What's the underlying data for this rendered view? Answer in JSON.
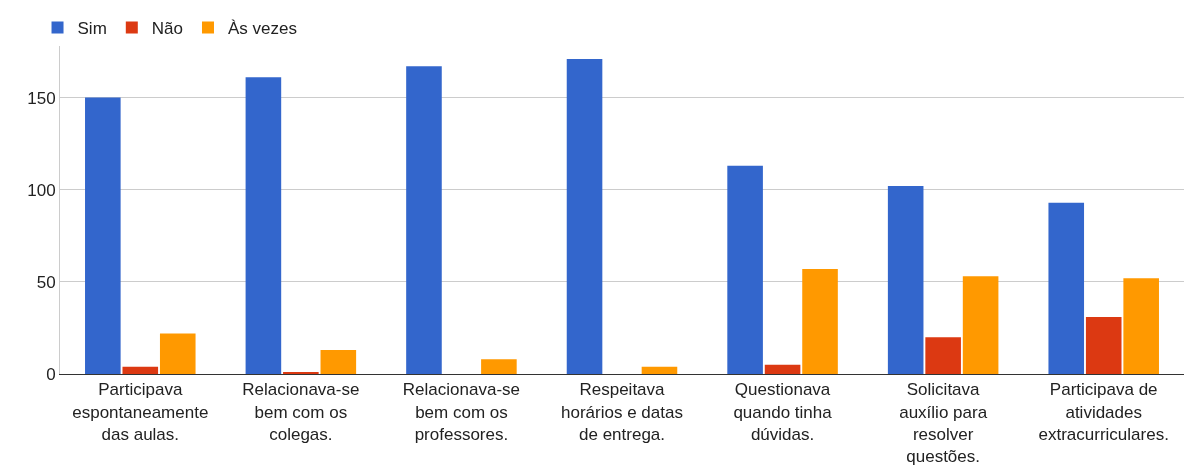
{
  "chart_data": {
    "type": "bar",
    "categories": [
      "Participava espontaneamente das aulas.",
      "Relacionava-se bem com os colegas.",
      "Relacionava-se bem com os professores.",
      "Respeitava horários e datas de entrega.",
      "Questionava quando tinha dúvidas.",
      "Solicitava auxílio para resolver questões.",
      "Participava de atividades extracurriculares."
    ],
    "series": [
      {
        "name": "Sim",
        "color": "#3366cc",
        "values": [
          150,
          161,
          167,
          171,
          113,
          102,
          93
        ]
      },
      {
        "name": "Não",
        "color": "#dc3912",
        "values": [
          4,
          1,
          0,
          0,
          5,
          20,
          31
        ]
      },
      {
        "name": "Às vezes",
        "color": "#ff9900",
        "values": [
          22,
          13,
          8,
          4,
          57,
          53,
          52
        ]
      }
    ],
    "ylim": [
      0,
      178
    ],
    "yticks": [
      0,
      50,
      100,
      150
    ],
    "grid": "y",
    "legend": "top left"
  }
}
